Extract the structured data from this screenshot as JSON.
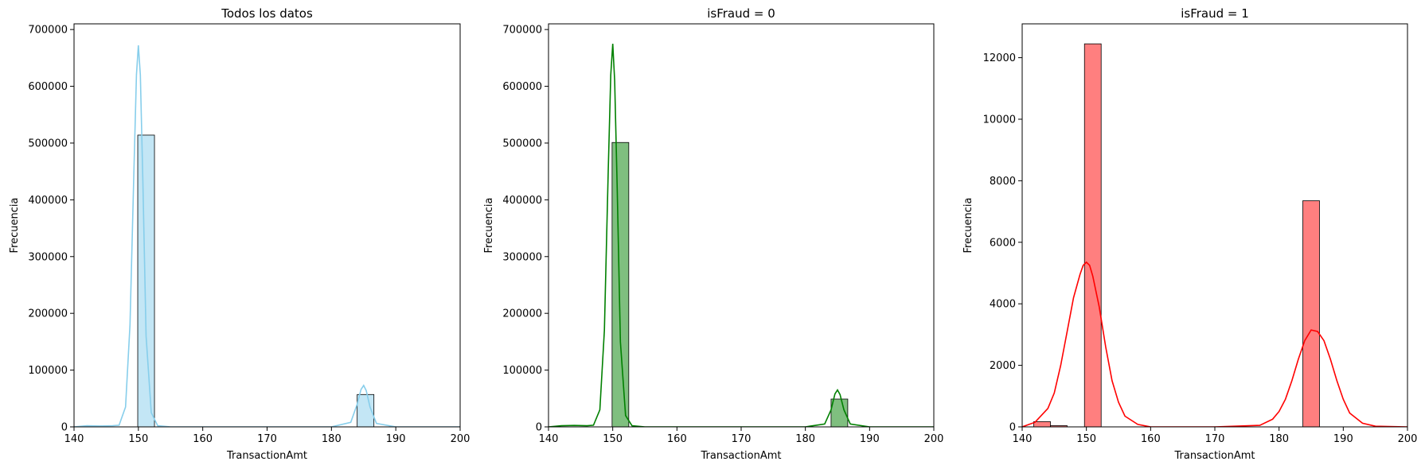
{
  "chart_data": [
    {
      "type": "bar",
      "title": "Todos los datos",
      "xlabel": "TransactionAmt",
      "ylabel": "Frecuencia",
      "xlim": [
        140,
        200
      ],
      "ylim": [
        0,
        710000
      ],
      "xticks": [
        140,
        150,
        160,
        170,
        180,
        190,
        200
      ],
      "yticks": [
        0,
        100000,
        200000,
        300000,
        400000,
        500000,
        600000,
        700000
      ],
      "bars": [
        {
          "x0": 149.9,
          "x1": 152.5,
          "value": 514000
        },
        {
          "x0": 184.0,
          "x1": 186.6,
          "value": 57000
        }
      ],
      "kde": {
        "x": [
          140,
          142,
          144,
          146,
          147,
          148,
          148.7,
          149.3,
          149.7,
          150,
          150.3,
          150.7,
          151.2,
          152,
          153,
          155,
          160,
          170,
          180,
          183,
          184,
          184.6,
          185,
          185.4,
          186,
          187,
          190,
          200
        ],
        "y": [
          0,
          2000,
          1500,
          2000,
          3000,
          35000,
          180000,
          450000,
          620000,
          672000,
          620000,
          430000,
          160000,
          25000,
          2000,
          0,
          0,
          0,
          0,
          8000,
          40000,
          66000,
          73000,
          64000,
          35000,
          6000,
          0,
          0
        ]
      },
      "colors": {
        "bar": "#87ceeb",
        "line": "#87ceeb"
      }
    },
    {
      "type": "bar",
      "title": "isFraud = 0",
      "xlabel": "TransactionAmt",
      "ylabel": "Frecuencia",
      "xlim": [
        140,
        200
      ],
      "ylim": [
        0,
        710000
      ],
      "xticks": [
        140,
        150,
        160,
        170,
        180,
        190,
        200
      ],
      "yticks": [
        0,
        100000,
        200000,
        300000,
        400000,
        500000,
        600000,
        700000
      ],
      "bars": [
        {
          "x0": 149.9,
          "x1": 152.5,
          "value": 501000
        },
        {
          "x0": 184.0,
          "x1": 186.6,
          "value": 49000
        }
      ],
      "kde": {
        "x": [
          140,
          142,
          144,
          146,
          147,
          148,
          148.7,
          149.3,
          149.7,
          150,
          150.3,
          150.7,
          151.2,
          152,
          153,
          155,
          160,
          170,
          180,
          183,
          184,
          184.6,
          185,
          185.4,
          186,
          187,
          190,
          200
        ],
        "y": [
          0,
          2000,
          2500,
          2000,
          3000,
          30000,
          170000,
          450000,
          620000,
          675000,
          610000,
          420000,
          150000,
          20000,
          2000,
          0,
          0,
          0,
          0,
          5000,
          30000,
          58000,
          65000,
          57000,
          30000,
          5000,
          0,
          0
        ]
      },
      "colors": {
        "bar": "#008000",
        "line": "#008000"
      }
    },
    {
      "type": "bar",
      "title": "isFraud = 1",
      "xlabel": "TransactionAmt",
      "ylabel": "Frecuencia",
      "xlim": [
        140,
        200
      ],
      "ylim": [
        0,
        13100
      ],
      "xticks": [
        140,
        150,
        160,
        170,
        180,
        190,
        200
      ],
      "yticks": [
        0,
        2000,
        4000,
        6000,
        8000,
        10000,
        12000
      ],
      "bars": [
        {
          "x0": 141.8,
          "x1": 144.4,
          "value": 170
        },
        {
          "x0": 144.4,
          "x1": 147.0,
          "value": 40
        },
        {
          "x0": 149.7,
          "x1": 152.3,
          "value": 12450
        },
        {
          "x0": 183.7,
          "x1": 186.3,
          "value": 7350
        }
      ],
      "kde": {
        "x": [
          140,
          142,
          144,
          145,
          146,
          147,
          148,
          149,
          149.5,
          150,
          150.5,
          151,
          152,
          153,
          154,
          155,
          156,
          158,
          160,
          170,
          177,
          179,
          180,
          181,
          182,
          183,
          184,
          185,
          186,
          187,
          188,
          189,
          190,
          191,
          193,
          195,
          200
        ],
        "y": [
          0,
          150,
          600,
          1100,
          2000,
          3100,
          4200,
          4950,
          5250,
          5350,
          5250,
          4900,
          3900,
          2600,
          1500,
          800,
          350,
          80,
          0,
          0,
          50,
          250,
          500,
          900,
          1500,
          2200,
          2800,
          3150,
          3100,
          2800,
          2200,
          1500,
          900,
          450,
          120,
          20,
          0
        ]
      },
      "colors": {
        "bar": "#ff0000",
        "line": "#ff0000"
      }
    }
  ]
}
